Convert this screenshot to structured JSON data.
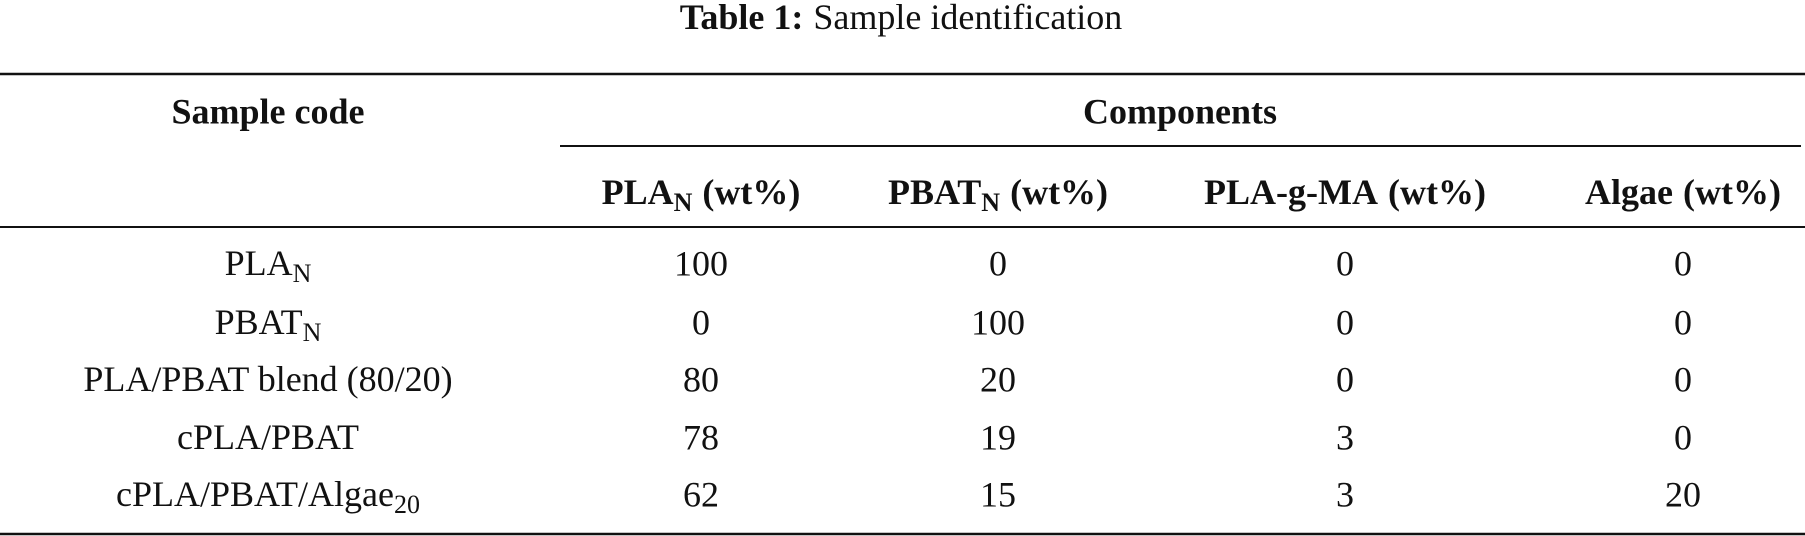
{
  "caption": {
    "label": "Table 1:",
    "text": "Sample identification"
  },
  "table": {
    "header": {
      "sample_code": "Sample code",
      "group": "Components",
      "columns": [
        {
          "text": "PLA",
          "sub": "N",
          "suffix": "(wt%)"
        },
        {
          "text": "PBAT",
          "sub": "N",
          "suffix": "(wt%)"
        },
        {
          "text": "PLA-g-MA",
          "suffix": "(wt%)"
        },
        {
          "text": "Algae",
          "suffix": "(wt%)"
        }
      ]
    },
    "rows": [
      {
        "sample": {
          "text": "PLA",
          "sub": "N"
        },
        "values": [
          100,
          0,
          0,
          0
        ]
      },
      {
        "sample": {
          "text": "PBAT",
          "sub": "N"
        },
        "values": [
          0,
          100,
          0,
          0
        ]
      },
      {
        "sample": {
          "text": "PLA/PBAT blend (80/20)"
        },
        "values": [
          80,
          20,
          0,
          0
        ]
      },
      {
        "sample": {
          "text": "cPLA/PBAT"
        },
        "values": [
          78,
          19,
          3,
          0
        ]
      },
      {
        "sample": {
          "text": "cPLA/PBAT/Algae",
          "sub": "20"
        },
        "values": [
          62,
          15,
          3,
          20
        ]
      }
    ]
  }
}
